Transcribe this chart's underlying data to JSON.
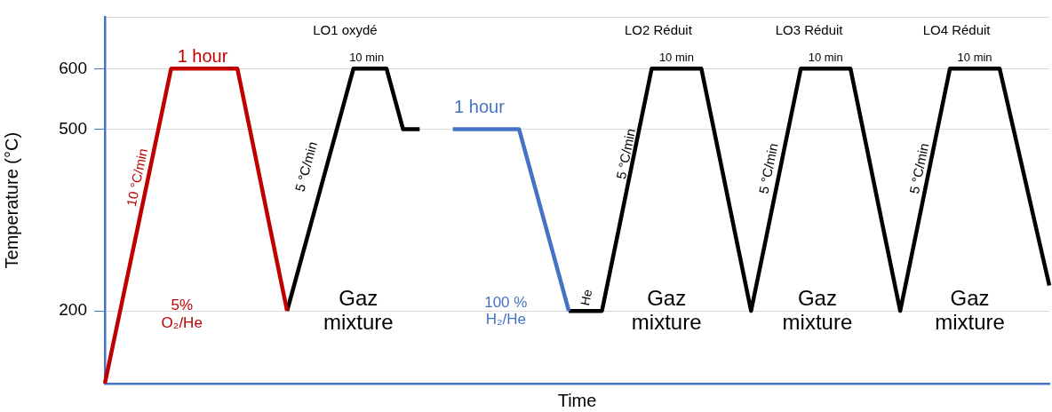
{
  "chart_data": {
    "type": "line",
    "xlabel": "Time",
    "ylabel": "Temperature (°C)",
    "categories": [
      null,
      null,
      null,
      null,
      null,
      null,
      null,
      null,
      null,
      null,
      null,
      null,
      null,
      null,
      null,
      null,
      null,
      null,
      null,
      null,
      null,
      null,
      null,
      null,
      null,
      null,
      null,
      null,
      null,
      null,
      null,
      null,
      null,
      null,
      null,
      null,
      null,
      null,
      null,
      null,
      null,
      null,
      null,
      null,
      null,
      null,
      null,
      null,
      null,
      null,
      null,
      null,
      null,
      null,
      null,
      null,
      null,
      null
    ],
    "ylim": [
      80,
      685
    ],
    "yticks": [
      200,
      500,
      600,
      {
        "value": 685,
        "label": null
      }
    ],
    "grid": "y",
    "legend": false,
    "marker": "none",
    "line_style": "solid",
    "series": [
      {
        "color": "#c00000",
        "values": [
          80,
          210,
          340,
          470,
          600,
          600,
          600,
          600,
          600,
          467,
          333,
          200,
          null,
          null,
          null,
          null,
          null,
          null,
          null,
          null,
          null,
          null,
          null,
          null,
          null,
          null,
          null,
          null,
          null,
          null,
          null,
          null,
          null,
          null,
          null,
          null,
          null,
          null,
          null,
          null,
          null,
          null,
          null,
          null,
          null,
          null,
          null,
          null,
          null,
          null,
          null,
          null,
          null,
          null,
          null,
          null,
          null,
          null
        ]
      },
      {
        "color": "#4472c4",
        "values": [
          null,
          null,
          null,
          null,
          null,
          null,
          null,
          null,
          null,
          null,
          null,
          null,
          null,
          null,
          null,
          null,
          null,
          null,
          null,
          null,
          null,
          500,
          500,
          500,
          500,
          500,
          400,
          300,
          200,
          null,
          null,
          null,
          null,
          null,
          null,
          null,
          null,
          null,
          null,
          null,
          null,
          null,
          null,
          null,
          null,
          null,
          null,
          null,
          null,
          null,
          null,
          null,
          null,
          null,
          null,
          null,
          null,
          null
        ]
      },
      {
        "color": "#000000",
        "values": [
          null,
          null,
          null,
          null,
          null,
          null,
          null,
          null,
          null,
          null,
          null,
          200,
          300,
          400,
          500,
          600,
          600,
          600,
          500,
          500,
          null,
          null,
          null,
          null,
          null,
          null,
          null,
          null,
          null,
          null,
          null,
          null,
          null,
          null,
          null,
          null,
          null,
          null,
          null,
          null,
          null,
          null,
          null,
          null,
          null,
          null,
          null,
          null,
          null,
          null,
          null,
          null,
          null,
          null,
          null,
          null,
          null,
          null
        ]
      },
      {
        "color": "#000000",
        "values": [
          null,
          null,
          null,
          null,
          null,
          null,
          null,
          null,
          null,
          null,
          null,
          null,
          null,
          null,
          null,
          null,
          null,
          null,
          null,
          null,
          null,
          null,
          null,
          null,
          null,
          null,
          null,
          null,
          200,
          200,
          200,
          333,
          467,
          600,
          600,
          600,
          600,
          467,
          333,
          200,
          333,
          467,
          600,
          600,
          600,
          600,
          467,
          333,
          200,
          333,
          467,
          600,
          600,
          600,
          600,
          481,
          361,
          242
        ]
      }
    ],
    "annotations": [
      "1 hour",
      "10 °C/min",
      "5%\nO₂/He",
      "LO1 oxydé",
      "10 min",
      "5 °C/min",
      "Gaz\nmixture",
      "1 hour",
      "100 %\nH₂/He",
      "He",
      "LO2 Réduit",
      "10 min",
      "5 °C/min",
      "Gaz\nmixture",
      "LO3 Réduit",
      "10 min",
      "5 °C/min",
      "Gaz\nmixture",
      "LO4 Réduit",
      "10 min",
      "5 °C/min",
      "Gaz\nmixture"
    ]
  }
}
